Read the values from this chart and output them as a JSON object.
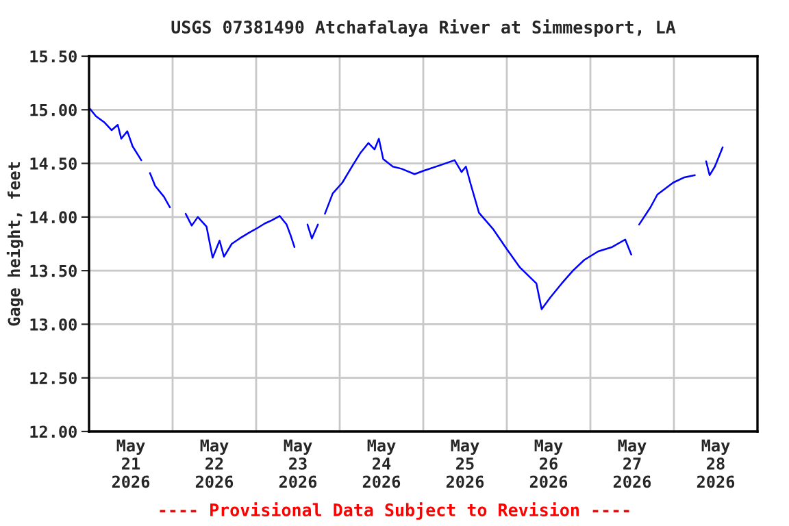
{
  "chart_data": {
    "type": "line",
    "title": "USGS 07381490 Atchafalaya River at Simmesport, LA",
    "ylabel": "Gage height, feet",
    "annotations": [
      "---- Provisional Data Subject to Revision ----"
    ],
    "x": [
      "2026-05-21T00:15",
      "2026-05-21T02:00",
      "2026-05-21T04:30",
      "2026-05-21T06:30",
      "2026-05-21T08:15",
      "2026-05-21T09:15",
      "2026-05-21T11:00",
      "2026-05-21T12:30",
      "2026-05-21T15:00",
      "2026-05-21T16:15",
      "2026-05-21T17:30",
      "2026-05-21T19:00",
      "2026-05-21T21:30",
      "2026-05-21T23:15",
      "2026-05-22T01:30",
      "2026-05-22T03:45",
      "2026-05-22T05:30",
      "2026-05-22T07:15",
      "2026-05-22T09:45",
      "2026-05-22T11:30",
      "2026-05-22T13:30",
      "2026-05-22T14:45",
      "2026-05-22T17:00",
      "2026-05-22T19:15",
      "2026-05-22T21:45",
      "2026-05-23T00:30",
      "2026-05-23T02:30",
      "2026-05-23T04:30",
      "2026-05-23T06:45",
      "2026-05-23T08:45",
      "2026-05-23T10:00",
      "2026-05-23T11:00",
      "2026-05-23T13:00",
      "2026-05-23T14:45",
      "2026-05-23T16:00",
      "2026-05-23T17:45",
      "2026-05-23T18:45",
      "2026-05-23T19:45",
      "2026-05-23T22:00",
      "2026-05-24T00:45",
      "2026-05-24T03:30",
      "2026-05-24T06:00",
      "2026-05-24T08:15",
      "2026-05-24T10:00",
      "2026-05-24T11:15",
      "2026-05-24T12:30",
      "2026-05-24T15:15",
      "2026-05-24T17:45",
      "2026-05-24T21:30",
      "2026-05-25T00:00",
      "2026-05-25T05:30",
      "2026-05-25T09:00",
      "2026-05-25T11:00",
      "2026-05-25T12:15",
      "2026-05-25T13:30",
      "2026-05-25T16:00",
      "2026-05-25T20:00",
      "2026-05-26T00:00",
      "2026-05-26T03:45",
      "2026-05-26T08:30",
      "2026-05-26T10:00",
      "2026-05-26T12:30",
      "2026-05-26T15:45",
      "2026-05-26T19:00",
      "2026-05-26T22:15",
      "2026-05-27T02:15",
      "2026-05-27T06:15",
      "2026-05-27T10:00",
      "2026-05-27T11:45",
      "2026-05-27T13:00",
      "2026-05-27T14:00",
      "2026-05-27T17:15",
      "2026-05-27T19:15",
      "2026-05-27T23:45",
      "2026-05-28T03:00",
      "2026-05-28T06:00",
      "2026-05-28T07:45",
      "2026-05-28T09:15",
      "2026-05-28T10:15",
      "2026-05-28T11:45",
      "2026-05-28T14:00"
    ],
    "series": [
      {
        "color": "#0000ff",
        "values": [
          15.01,
          14.94,
          14.88,
          14.81,
          14.86,
          14.73,
          14.8,
          14.66,
          14.53,
          null,
          14.41,
          14.29,
          14.19,
          14.09,
          null,
          14.03,
          13.92,
          14.0,
          13.91,
          13.62,
          13.78,
          13.63,
          13.75,
          13.8,
          13.85,
          13.9,
          13.94,
          13.97,
          14.01,
          13.93,
          13.82,
          13.72,
          null,
          13.93,
          13.8,
          13.93,
          null,
          14.03,
          14.22,
          14.32,
          14.47,
          14.6,
          14.69,
          14.63,
          14.73,
          14.54,
          14.47,
          14.45,
          14.4,
          14.43,
          14.49,
          14.53,
          14.42,
          14.47,
          14.32,
          14.04,
          13.89,
          13.7,
          13.53,
          13.38,
          13.14,
          13.25,
          13.38,
          13.5,
          13.6,
          13.68,
          13.72,
          13.79,
          13.65,
          null,
          13.93,
          14.09,
          14.21,
          14.32,
          14.37,
          14.39,
          null,
          14.52,
          14.39,
          14.47,
          14.65
        ]
      }
    ],
    "xlim": [
      "2026-05-21",
      "2026-05-29"
    ],
    "xticks": [
      {
        "value": "2026-05-21",
        "label": null
      },
      {
        "value": "2026-05-21T12:00",
        "label": "May\n21\n2026"
      },
      {
        "value": "2026-05-22",
        "label": null
      },
      {
        "value": "2026-05-22T12:00",
        "label": "May\n22\n2026"
      },
      {
        "value": "2026-05-23",
        "label": null
      },
      {
        "value": "2026-05-23T12:00",
        "label": "May\n23\n2026"
      },
      {
        "value": "2026-05-24",
        "label": null
      },
      {
        "value": "2026-05-24T12:00",
        "label": "May\n24\n2026"
      },
      {
        "value": "2026-05-25",
        "label": null
      },
      {
        "value": "2026-05-25T12:00",
        "label": "May\n25\n2026"
      },
      {
        "value": "2026-05-26",
        "label": null
      },
      {
        "value": "2026-05-26T12:00",
        "label": "May\n26\n2026"
      },
      {
        "value": "2026-05-27",
        "label": null
      },
      {
        "value": "2026-05-27T12:00",
        "label": "May\n27\n2026"
      },
      {
        "value": "2026-05-28",
        "label": null
      },
      {
        "value": "2026-05-28T12:00",
        "label": "May\n28\n2026"
      },
      {
        "value": "2026-05-29",
        "label": null
      }
    ],
    "ylim": [
      12.0,
      15.5
    ],
    "yticks": [
      {
        "value": 12.0,
        "label": "12.00"
      },
      {
        "value": 12.5,
        "label": "12.50"
      },
      {
        "value": 13.0,
        "label": "13.00"
      },
      {
        "value": 13.5,
        "label": "13.50"
      },
      {
        "value": 14.0,
        "label": "14.00"
      },
      {
        "value": 14.5,
        "label": "14.50"
      },
      {
        "value": 15.0,
        "label": "15.00"
      },
      {
        "value": 15.5,
        "label": "15.50"
      }
    ],
    "grid": true,
    "legend": false
  }
}
